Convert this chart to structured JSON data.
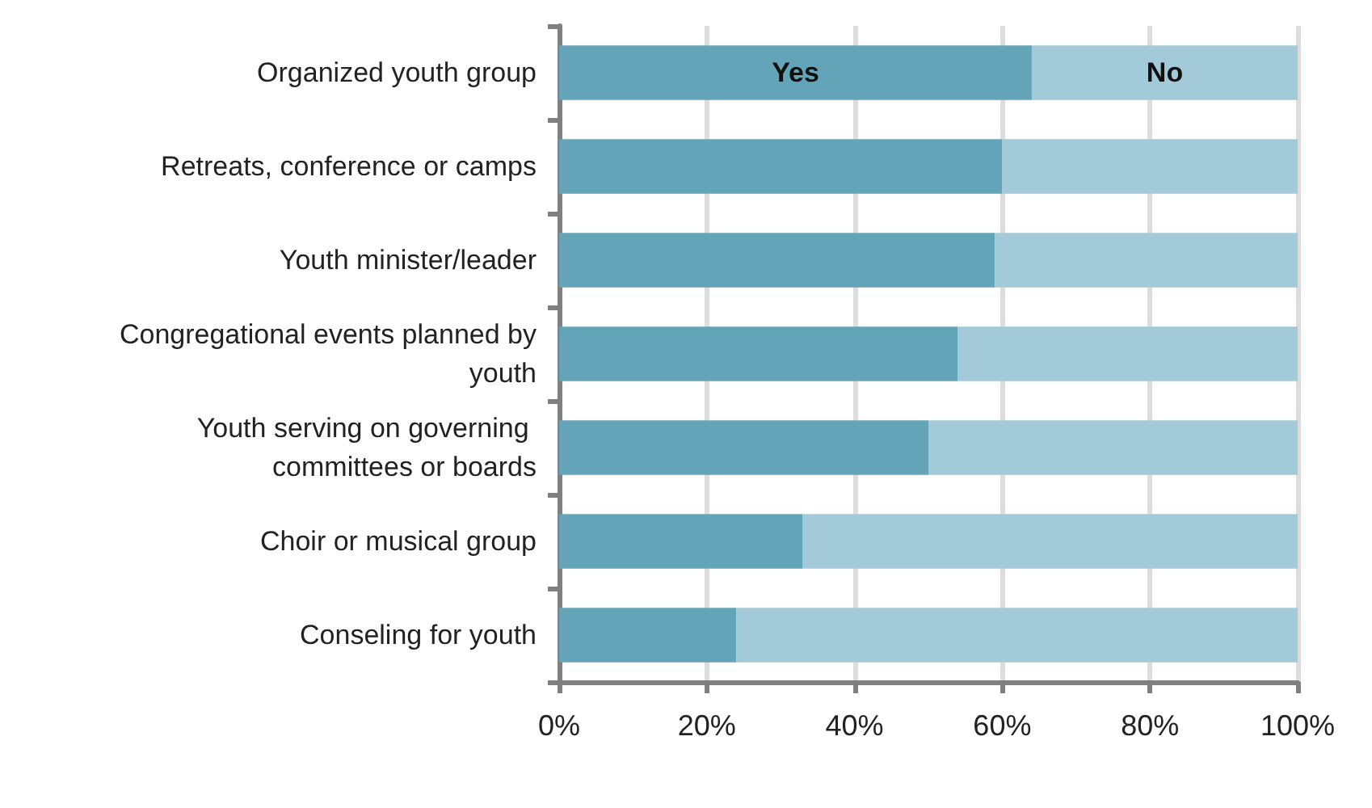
{
  "chart_data": {
    "type": "bar",
    "orientation": "horizontal",
    "stacked": true,
    "categories": [
      "Organized youth group",
      "Retreats, conference or camps",
      "Youth minister/leader",
      "Congregational events planned by youth",
      "Youth serving on governing committees or boards",
      "Choir or musical group",
      "Conseling for youth"
    ],
    "series": [
      {
        "name": "Yes",
        "color": "#64a4b9",
        "values": [
          64,
          60,
          59,
          54,
          50,
          33,
          24
        ]
      },
      {
        "name": "No",
        "color": "#a3cad8",
        "values": [
          36,
          40,
          41,
          46,
          50,
          67,
          76
        ]
      }
    ],
    "xlim": [
      0,
      100
    ],
    "xticks": [
      {
        "value": 0,
        "label": "0%"
      },
      {
        "value": 20,
        "label": "20%"
      },
      {
        "value": 40,
        "label": "40%"
      },
      {
        "value": 60,
        "label": "60%"
      },
      {
        "value": 80,
        "label": "80%"
      },
      {
        "value": 100,
        "label": "100%"
      }
    ],
    "grid": "x",
    "legend": "top"
  }
}
